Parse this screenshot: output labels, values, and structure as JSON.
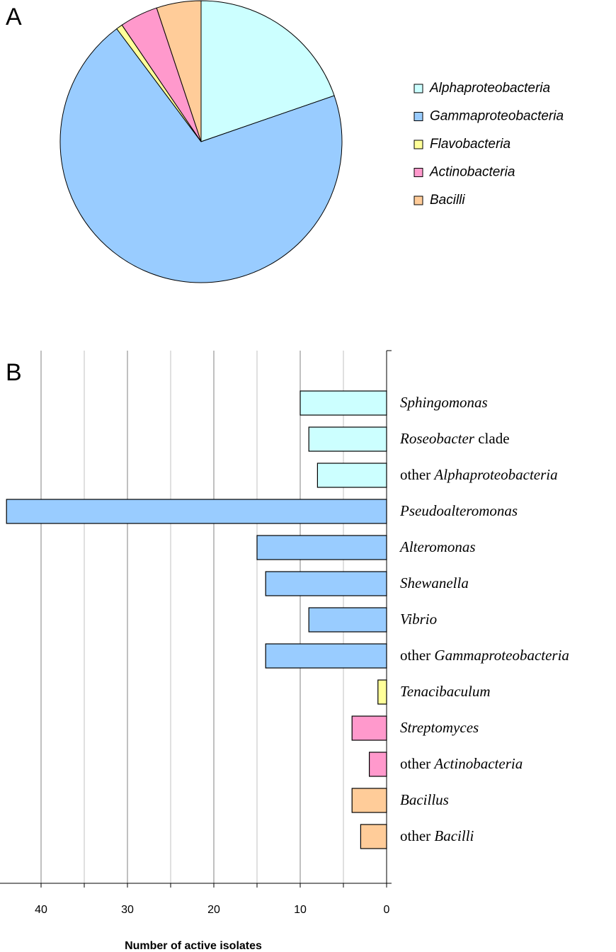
{
  "chart_data": [
    {
      "type": "pie",
      "panel_label": "A",
      "categories": [
        "Alphaproteobacteria",
        "Gammaproteobacteria",
        "Flavobacteria",
        "Actinobacteria",
        "Bacilli"
      ],
      "values": [
        27,
        96,
        1,
        6,
        7
      ],
      "colors": [
        "#ccffff",
        "#99ccff",
        "#ffff99",
        "#ff99cc",
        "#ffcc99"
      ],
      "legend": "right"
    },
    {
      "type": "hbar",
      "panel_label": "B",
      "xlabel": "Number of active isolates",
      "categories": [
        [
          {
            "text": "Sphingomonas",
            "italic": true
          }
        ],
        [
          {
            "text": "Roseobacter",
            "italic": true
          },
          {
            "text": " clade",
            "italic": false
          }
        ],
        [
          {
            "text": "other ",
            "italic": false
          },
          {
            "text": "Alphaproteobacteria",
            "italic": true
          }
        ],
        [
          {
            "text": "Pseudoalteromonas",
            "italic": true
          }
        ],
        [
          {
            "text": "Alteromonas",
            "italic": true
          }
        ],
        [
          {
            "text": "Shewanella",
            "italic": true
          }
        ],
        [
          {
            "text": "Vibrio",
            "italic": true
          }
        ],
        [
          {
            "text": "other ",
            "italic": false
          },
          {
            "text": "Gammaproteobacteria",
            "italic": true
          }
        ],
        [
          {
            "text": "Tenacibaculum",
            "italic": true
          }
        ],
        [
          {
            "text": "Streptomyces",
            "italic": true
          }
        ],
        [
          {
            "text": "other ",
            "italic": false
          },
          {
            "text": "Actinobacteria",
            "italic": true
          }
        ],
        [
          {
            "text": "Bacillus",
            "italic": true
          }
        ],
        [
          {
            "text": "other ",
            "italic": false
          },
          {
            "text": "Bacilli",
            "italic": true
          }
        ]
      ],
      "values": [
        10,
        9,
        8,
        44,
        15,
        14,
        9,
        14,
        1,
        4,
        2,
        4,
        3
      ],
      "colors": [
        "#ccffff",
        "#ccffff",
        "#ccffff",
        "#99ccff",
        "#99ccff",
        "#99ccff",
        "#99ccff",
        "#99ccff",
        "#ffff99",
        "#ff99cc",
        "#ff99cc",
        "#ffcc99",
        "#ffcc99"
      ],
      "xlim": [
        0,
        45
      ],
      "xticks": [
        0,
        10,
        20,
        30,
        40
      ],
      "minor_xticks": [
        5,
        15,
        25,
        35
      ],
      "x_reversed": true,
      "grid": true
    }
  ]
}
